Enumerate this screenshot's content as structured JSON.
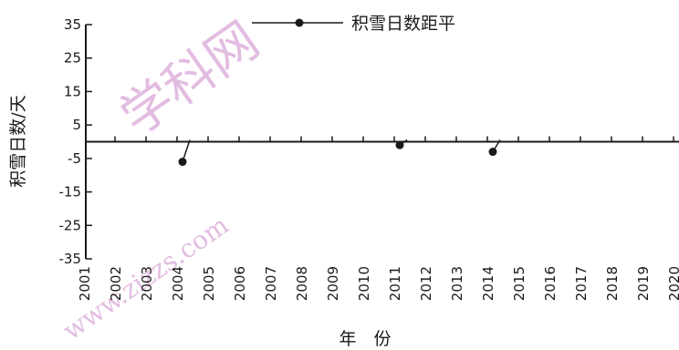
{
  "chart_data": {
    "type": "line",
    "title": "",
    "xlabel": "年　份",
    "ylabel": "积雪日数/天",
    "categories": [
      "2001",
      "2002",
      "2003",
      "2004",
      "2005",
      "2006",
      "2007",
      "2008",
      "2009",
      "2010",
      "2011",
      "2012",
      "2013",
      "2014",
      "2015",
      "2016",
      "2017",
      "2018",
      "2019",
      "2020"
    ],
    "yticks": [
      35,
      25,
      15,
      5,
      -5,
      -15,
      -25,
      -35
    ],
    "ytick_labels": [
      "35",
      "25",
      "15",
      "5",
      "-5",
      "-15",
      "-25",
      "-35"
    ],
    "ylim": [
      -35,
      35
    ],
    "grid": false,
    "legend_position": "top",
    "series": [
      {
        "name": "积雪日数距平",
        "values": [
          null,
          null,
          null,
          -6,
          null,
          null,
          null,
          null,
          null,
          null,
          -1,
          null,
          null,
          -3,
          null,
          null,
          null,
          null,
          null,
          null
        ]
      }
    ]
  },
  "watermark": {
    "text": "学科网",
    "url": "www.zizzs.com",
    "color": "#d9a8d8"
  }
}
